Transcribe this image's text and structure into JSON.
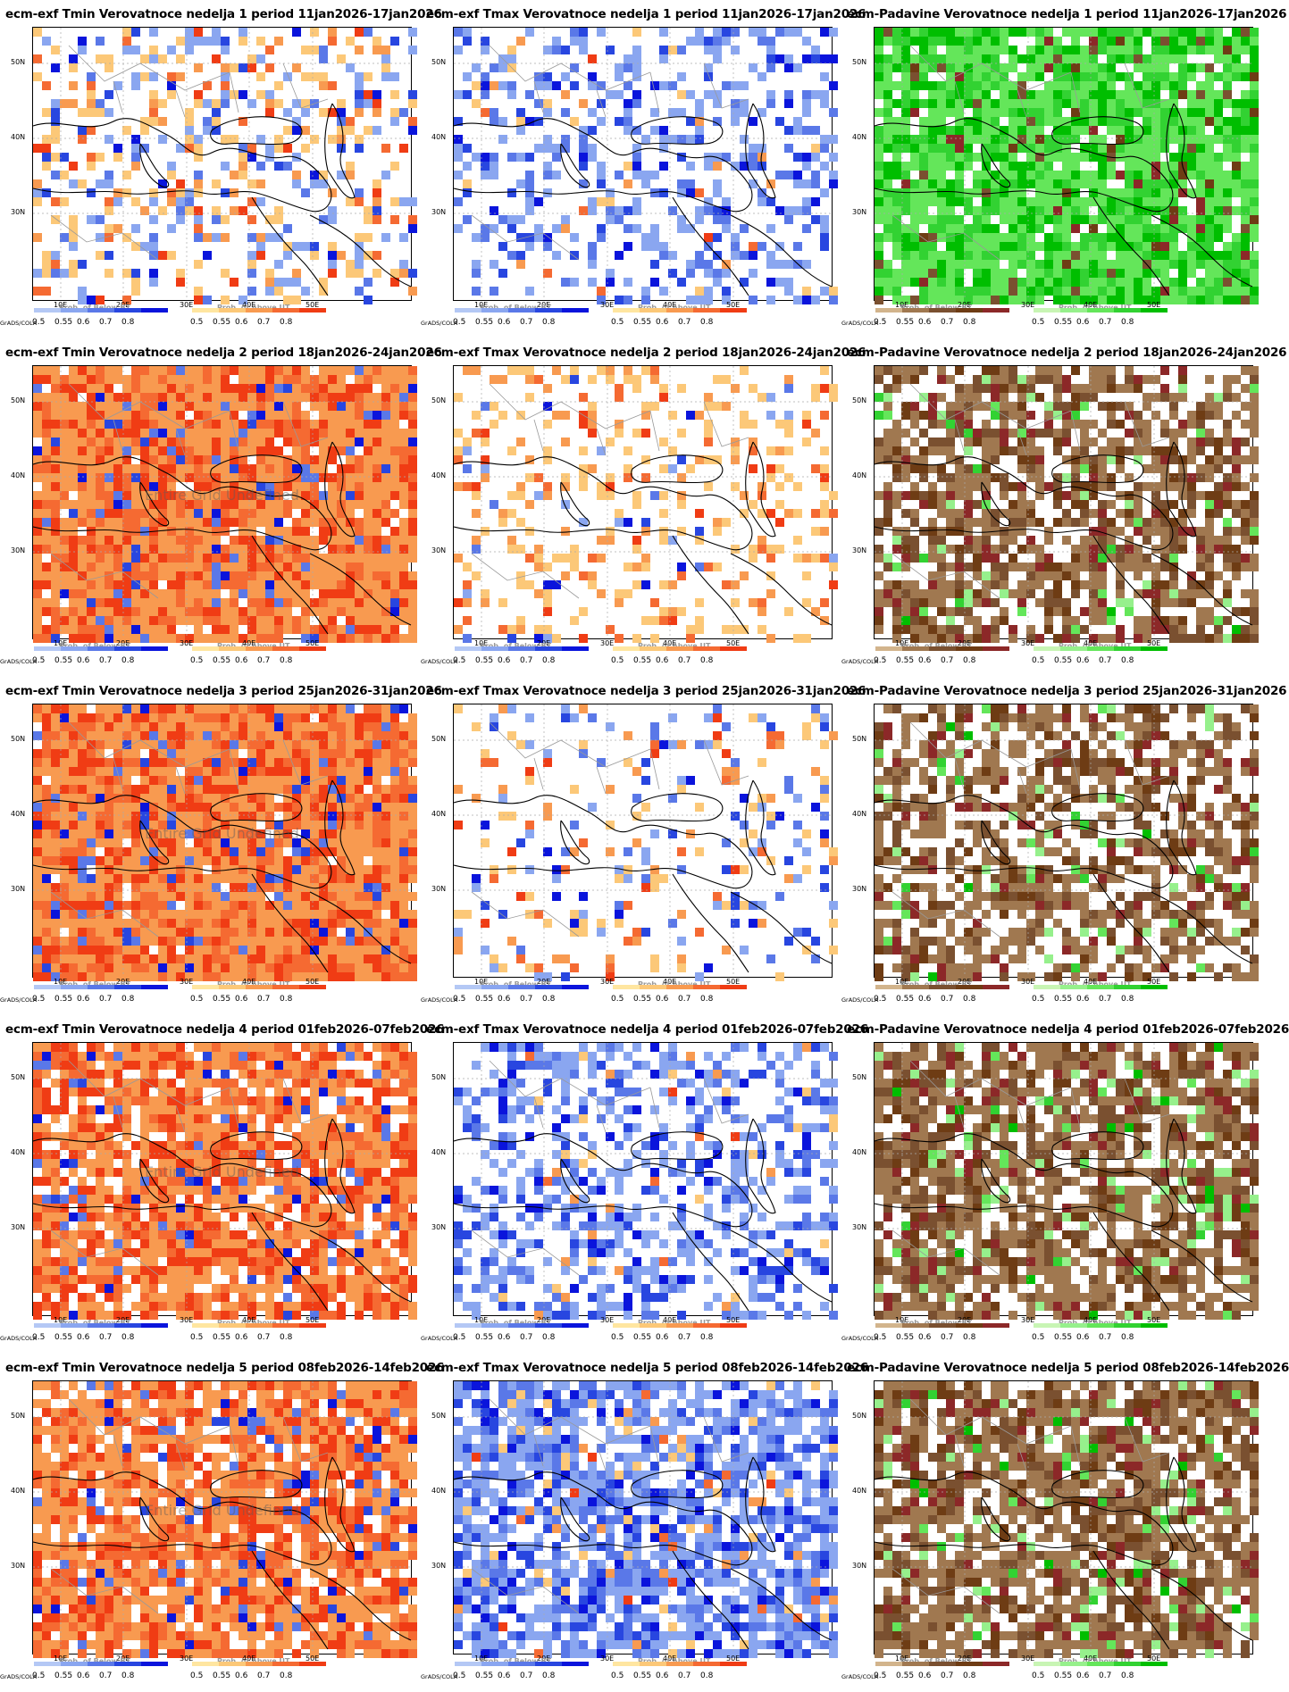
{
  "layout_grid": {
    "rows": 5,
    "cols": 3
  },
  "colors": {
    "below_scale": [
      "#b4c8f5",
      "#8aa6f0",
      "#5a78e8",
      "#2846e0",
      "#0a14dc"
    ],
    "above_scale": [
      "#ffe6a0",
      "#fcc878",
      "#f89a50",
      "#f56a32",
      "#f03c14"
    ],
    "dry_scale": [
      "#d2b48c",
      "#a07850",
      "#7a5030",
      "#6e3c14",
      "#8c2828"
    ],
    "wet_scale": [
      "#c8f5b4",
      "#96f08c",
      "#64e65a",
      "#32d232",
      "#00be00"
    ]
  },
  "axes": {
    "y_labels": [
      "50N",
      "40N",
      "30N"
    ],
    "x_labels": [
      "10E",
      "20E",
      "30E",
      "40E",
      "50E"
    ]
  },
  "legend": {
    "caption_below": "Prob. of Below BT",
    "caption_above": "Prob. of Above UT",
    "ticks": [
      "0.5",
      "0.55",
      "0.6",
      "0.7",
      "0.8"
    ],
    "grads_label": "GrADS/COLA"
  },
  "watermark_text": "Entire Grid Undefined",
  "panels": [
    {
      "title": "ecm-exf Tmin Verovatnoce nedelja 1 period 11jan2026-17jan2026",
      "var": "temp",
      "cover": 0.35,
      "bias": "mixed",
      "watermark": false
    },
    {
      "title": "ecm-exf Tmax Verovatnoce nedelja 1 period 11jan2026-17jan2026",
      "var": "temp",
      "cover": 0.35,
      "bias": "cold",
      "watermark": false
    },
    {
      "title": "ecm-Padavine Verovatnoce nedelja 1 period 11jan2026-17jan2026",
      "var": "precip",
      "cover": 0.9,
      "bias": "wet",
      "watermark": false
    },
    {
      "title": "ecm-exf Tmin Verovatnoce nedelja 2 period 18jan2026-24jan2026",
      "var": "temp",
      "cover": 0.95,
      "bias": "warm",
      "watermark": true
    },
    {
      "title": "ecm-exf Tmax Verovatnoce nedelja 2 period 18jan2026-24jan2026",
      "var": "temp",
      "cover": 0.25,
      "bias": "warm",
      "watermark": false
    },
    {
      "title": "ecm-Padavine Verovatnoce nedelja 2 period 18jan2026-24jan2026",
      "var": "precip",
      "cover": 0.7,
      "bias": "dry",
      "watermark": false
    },
    {
      "title": "ecm-exf Tmin Verovatnoce nedelja 3 period 25jan2026-31jan2026",
      "var": "temp",
      "cover": 0.97,
      "bias": "warm",
      "watermark": true
    },
    {
      "title": "ecm-exf Tmax Verovatnoce nedelja 3 period 25jan2026-31jan2026",
      "var": "temp",
      "cover": 0.2,
      "bias": "mixed",
      "watermark": false
    },
    {
      "title": "ecm-Padavine Verovatnoce nedelja 3 period 25jan2026-31jan2026",
      "var": "precip",
      "cover": 0.6,
      "bias": "dry",
      "watermark": false
    },
    {
      "title": "ecm-exf Tmin Verovatnoce nedelja 4 period 01feb2026-07feb2026",
      "var": "temp",
      "cover": 0.85,
      "bias": "warm",
      "watermark": true
    },
    {
      "title": "ecm-exf Tmax Verovatnoce nedelja 4 period 01feb2026-07feb2026",
      "var": "temp",
      "cover": 0.45,
      "bias": "cold",
      "watermark": false
    },
    {
      "title": "ecm-Padavine Verovatnoce nedelja 4 period 01feb2026-07feb2026",
      "var": "precip",
      "cover": 0.75,
      "bias": "dry",
      "watermark": false
    },
    {
      "title": "ecm-exf Tmin Verovatnoce nedelja 5 period 08feb2026-14feb2026",
      "var": "temp",
      "cover": 0.85,
      "bias": "warm",
      "watermark": true
    },
    {
      "title": "ecm-exf Tmax Verovatnoce nedelja 5 period 08feb2026-14feb2026",
      "var": "temp",
      "cover": 0.7,
      "bias": "cold",
      "watermark": false
    },
    {
      "title": "ecm-Padavine Verovatnoce nedelja 5 period 08feb2026-14feb2026",
      "var": "precip",
      "cover": 0.75,
      "bias": "dry",
      "watermark": false
    }
  ]
}
